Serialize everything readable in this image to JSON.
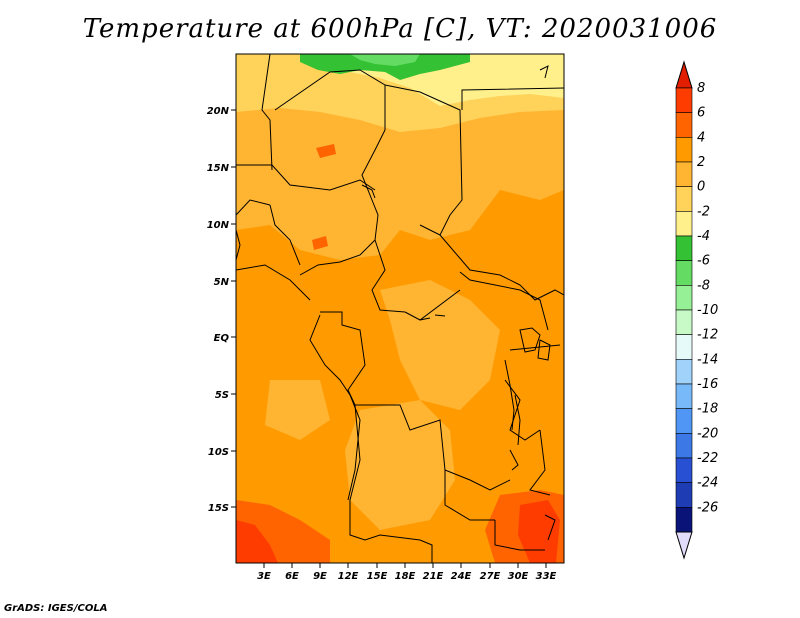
{
  "title": "Temperature at 600hPa [C], VT: 2020031006",
  "footer": "GrADS: IGES/COLA",
  "lat_labels": [
    "20N",
    "15N",
    "10N",
    "5N",
    "EQ",
    "5S",
    "10S",
    "15S"
  ],
  "lon_labels": [
    "3E",
    "6E",
    "9E",
    "12E",
    "15E",
    "18E",
    "21E",
    "24E",
    "27E",
    "30E",
    "33E"
  ],
  "colorbar": {
    "labels": [
      "8",
      "6",
      "4",
      "2",
      "0",
      "-2",
      "-4",
      "-6",
      "-8",
      "-10",
      "-12",
      "-14",
      "-16",
      "-18",
      "-20",
      "-22",
      "-24",
      "-26"
    ],
    "colors": [
      "#ff3c00",
      "#ff6400",
      "#ff9b00",
      "#ffb432",
      "#ffd25a",
      "#fff08c",
      "#34c134",
      "#64dc64",
      "#96f096",
      "#c8fac8",
      "#e6fafa",
      "#a0d2fa",
      "#78b9fa",
      "#5096f5",
      "#3c78e6",
      "#2850d2",
      "#1e3cb4",
      "#0a1478"
    ],
    "top_triangle_color": "#e11e00",
    "bottom_triangle_color": "#e1dcfa"
  }
}
